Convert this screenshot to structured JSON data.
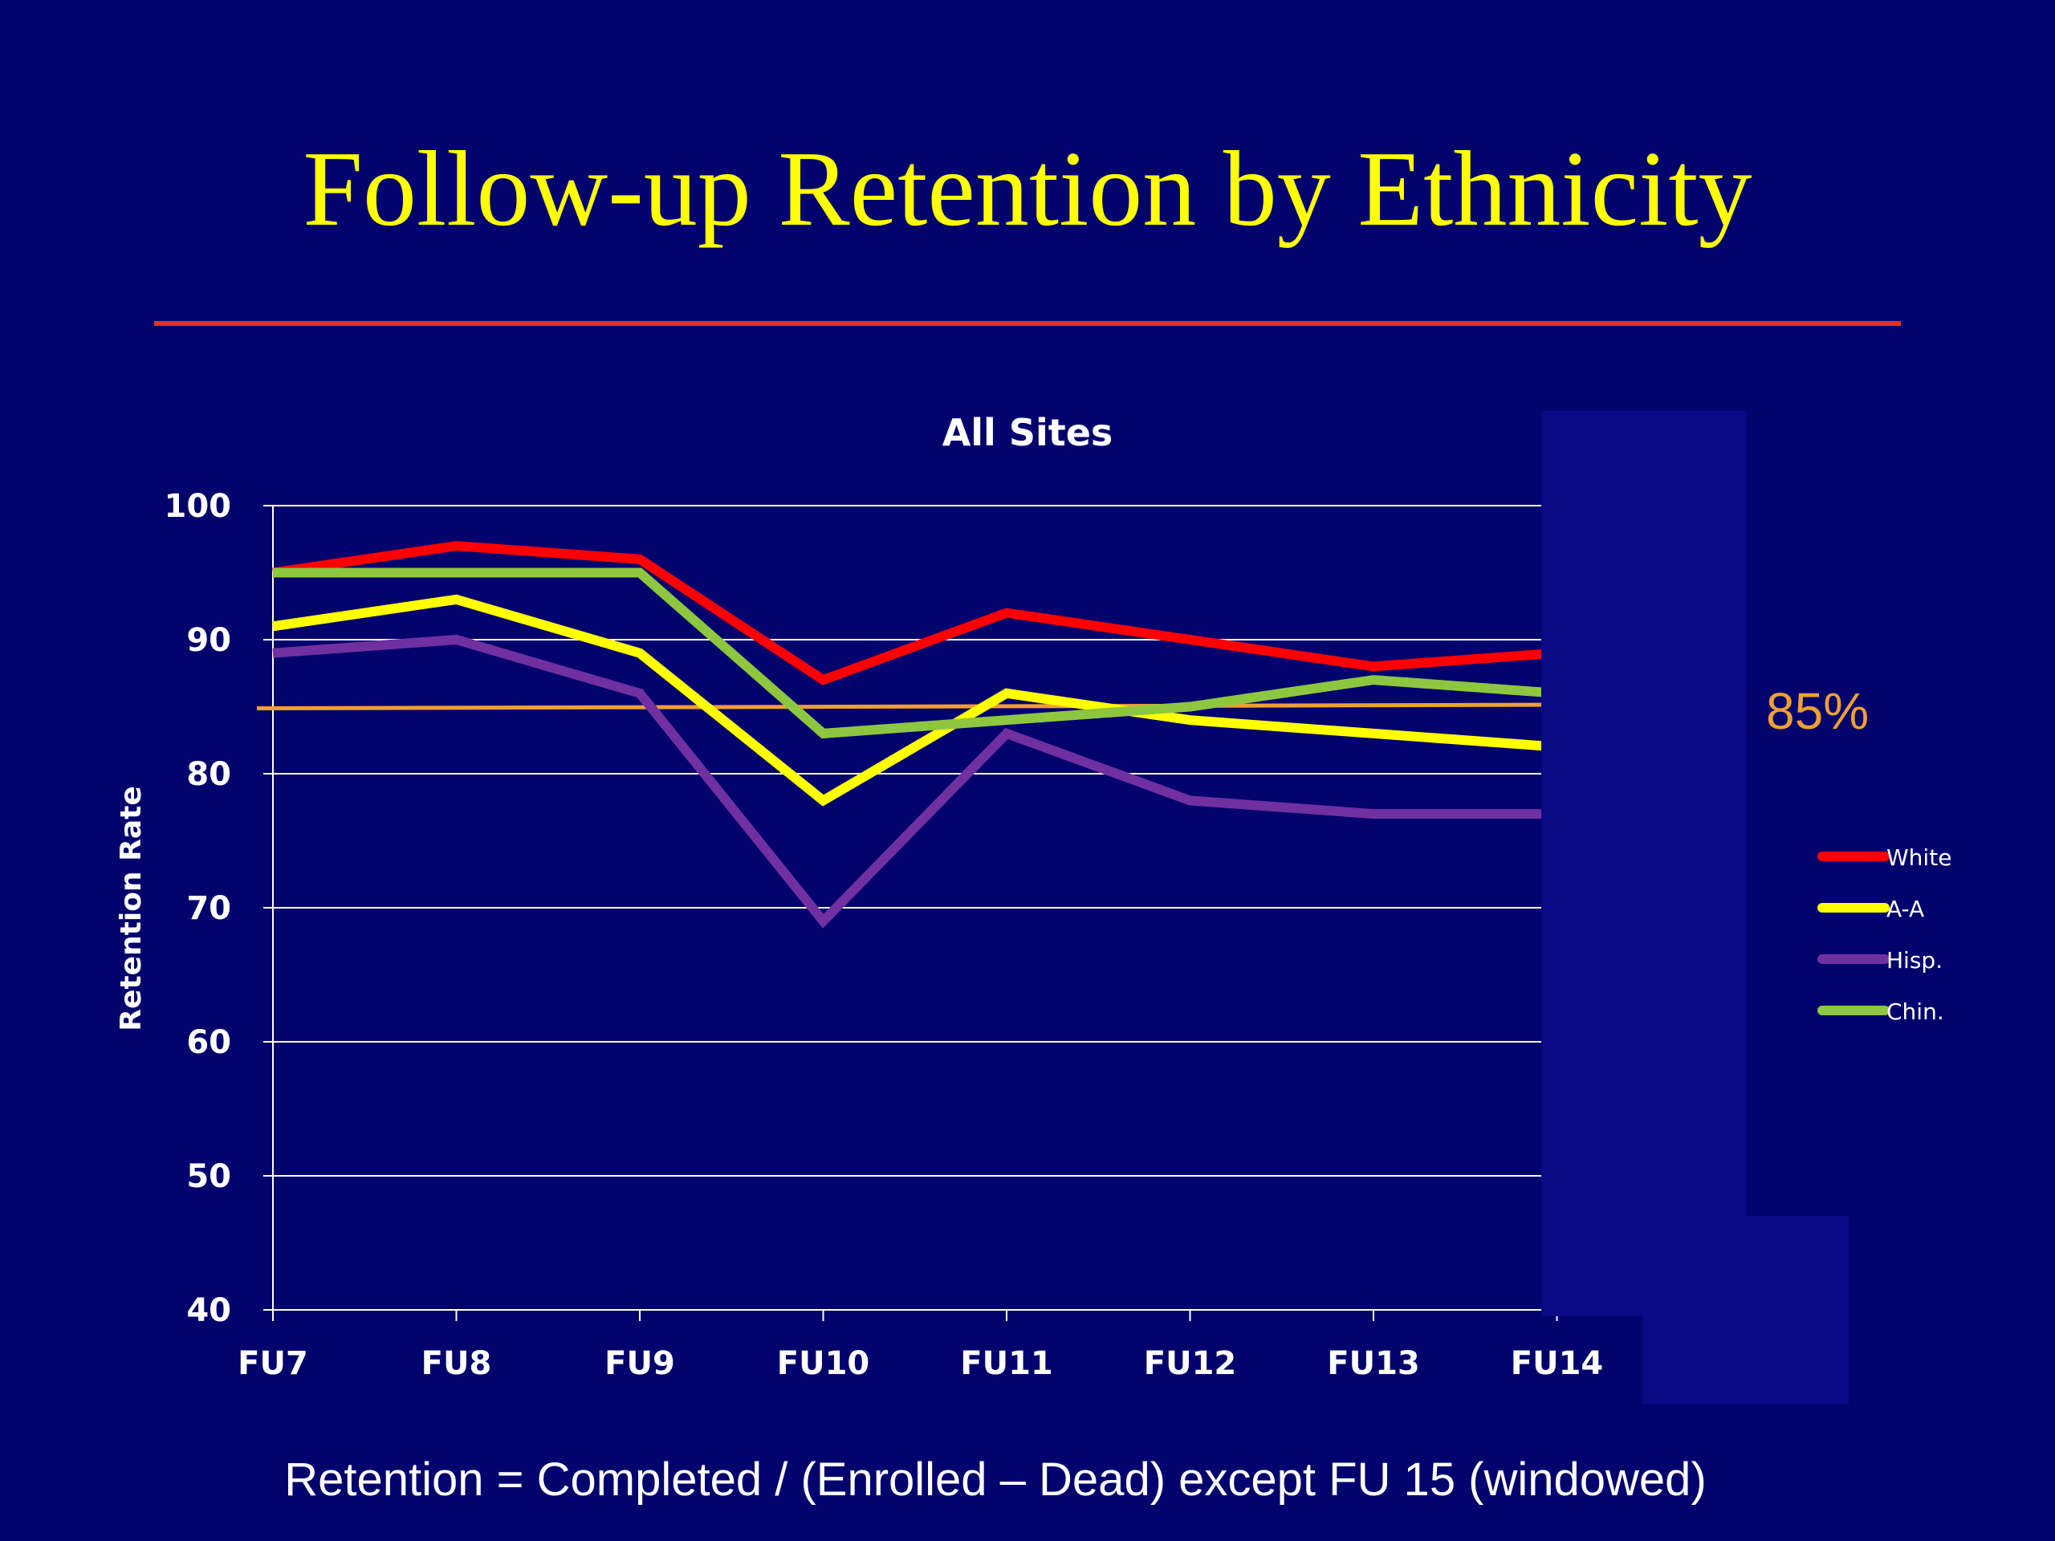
{
  "slide": {
    "title": "Follow-up Retention by Ethnicity",
    "footnote": "Retention = Completed / (Enrolled – Dead) except FU 15 (windowed)",
    "colors": {
      "background": "#03036e",
      "title": "#ffff00",
      "rule": "#e3301f"
    }
  },
  "chart_data": {
    "type": "line",
    "title": "All Sites",
    "xlabel": "",
    "ylabel": "Retention Rate",
    "categories": [
      "FU7",
      "FU8",
      "FU9",
      "FU10",
      "FU11",
      "FU12",
      "FU13",
      "FU14"
    ],
    "ylim": [
      40,
      100
    ],
    "yticks": [
      40,
      50,
      60,
      70,
      80,
      90,
      100
    ],
    "grid": true,
    "legend_position": "right",
    "series": [
      {
        "name": "White",
        "color": "#ff0000",
        "values": [
          95,
          97,
          96,
          87,
          92,
          90,
          88,
          89
        ]
      },
      {
        "name": "A-A",
        "color": "#ffff00",
        "values": [
          91,
          93,
          89,
          78,
          86,
          84,
          83,
          82
        ]
      },
      {
        "name": "Hisp.",
        "color": "#7030a0",
        "values": [
          89,
          90,
          86,
          69,
          83,
          78,
          77,
          77
        ]
      },
      {
        "name": "Chin.",
        "color": "#8dc63f",
        "values": [
          95,
          95,
          95,
          83,
          84,
          85,
          87,
          86
        ]
      }
    ],
    "reference_line": {
      "value": 85,
      "label": "85%",
      "color": "#f0a030"
    }
  }
}
